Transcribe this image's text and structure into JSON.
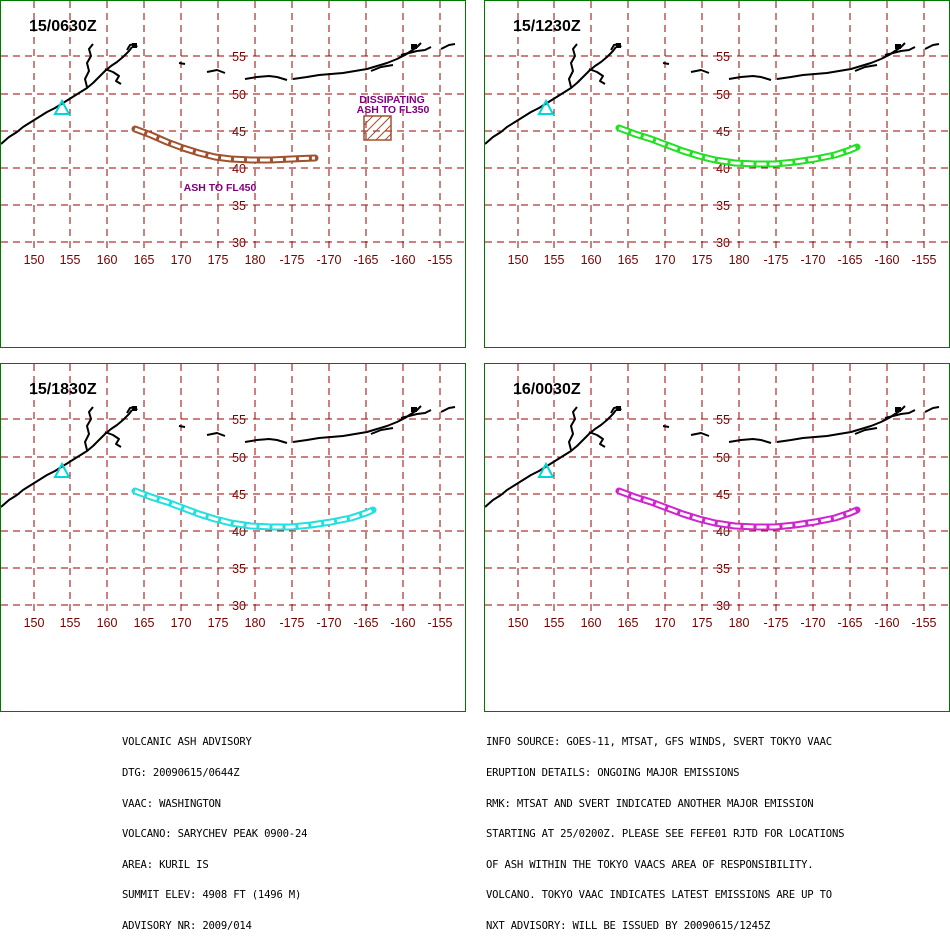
{
  "map_grid": {
    "longitudes": [
      "150",
      "155",
      "160",
      "165",
      "170",
      "175",
      "180",
      "-175",
      "-170",
      "-165",
      "-160",
      "-155"
    ],
    "latitudes": [
      "55",
      "50",
      "45",
      "40",
      "35",
      "30"
    ]
  },
  "colors": {
    "border": "#007800",
    "grid": "#9a0000",
    "coast": "#000000",
    "volcano_marker": "#00d8d8",
    "panel1_ash": "#a0522d",
    "panel2_ash": "#22e022",
    "panel3_ash": "#22e0e0",
    "panel4_ash": "#d024d0",
    "annotation": "#800080"
  },
  "panels": [
    {
      "title": "15/0630Z",
      "ash_label": "ASH TO FL450",
      "dissipating_label_1": "DISSIPATING",
      "dissipating_label_2": "ASH TO FL350"
    },
    {
      "title": "15/1230Z"
    },
    {
      "title": "15/1830Z"
    },
    {
      "title": "16/0030Z"
    }
  ],
  "advisory_left": [
    "VOLCANIC ASH ADVISORY",
    "DTG: 20090615/0644Z",
    "VAAC: WASHINGTON",
    "VOLCANO: SARYCHEV PEAK 0900-24",
    "AREA: KURIL IS",
    "SUMMIT ELEV: 4908 FT (1496 M)",
    "ADVISORY NR: 2009/014"
  ],
  "advisory_right": [
    "INFO SOURCE: GOES-11, MTSAT, GFS WINDS, SVERT TOKYO VAAC",
    "ERUPTION DETAILS: ONGOING MAJOR EMISSIONS",
    "RMK: MTSAT AND SVERT INDICATED ANOTHER MAJOR EMISSION",
    "STARTING AT 25/0200Z. PLEASE SEE FEFE01 RJTD FOR LOCATIONS",
    "OF ASH WITHIN THE TOKYO VAACS AREA OF RESPONSIBILITY.",
    "VOLCANO. TOKYO VAAC INDICATES LATEST EMISSIONS ARE UP TO",
    "NXT ADVISORY: WILL BE ISSUED BY 20090615/1245Z"
  ]
}
